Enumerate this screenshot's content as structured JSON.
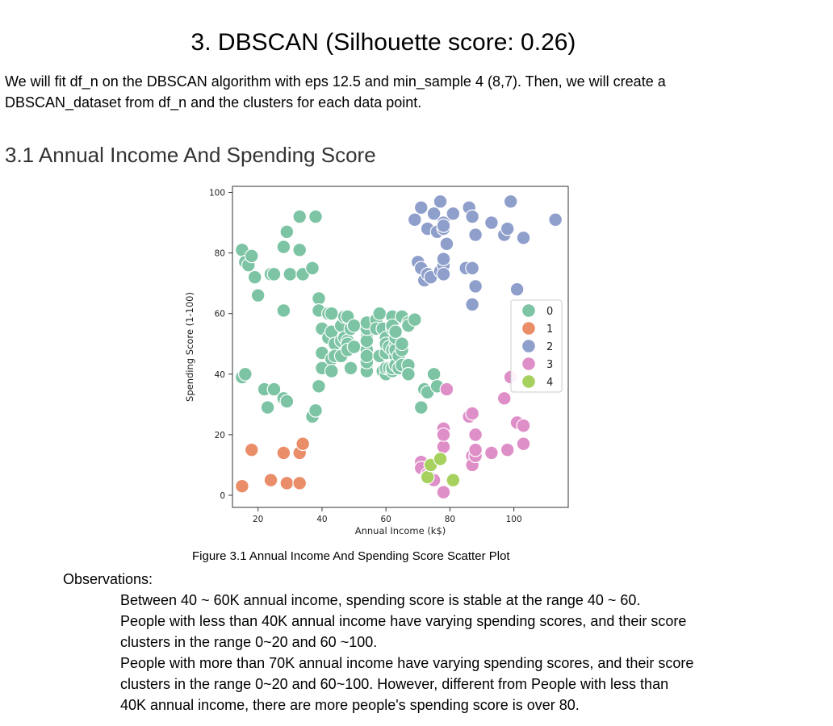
{
  "heading": "3. DBSCAN (Silhouette score: 0.26)",
  "intro": {
    "line1": "We will fit df_n on the DBSCAN algorithm with eps 12.5 and min_sample 4  (8,7). Then, we will create a",
    "line2": "DBSCAN_dataset from df_n and the clusters for each data point."
  },
  "section_title": "3.1 Annual Income And Spending Score",
  "chart_data": {
    "type": "scatter",
    "xlabel": "Annual Income (k$)",
    "ylabel": "Spending Score (1-100)",
    "xlim": [
      12,
      117
    ],
    "ylim": [
      -4,
      102
    ],
    "xticks": [
      20,
      40,
      60,
      80,
      100
    ],
    "yticks": [
      0,
      20,
      40,
      60,
      80,
      100
    ],
    "legend_position": "right",
    "grid": false,
    "series": [
      {
        "name": "0",
        "color": "#7cc4a4",
        "points": [
          [
            15,
            39
          ],
          [
            16,
            40
          ],
          [
            15,
            81
          ],
          [
            16,
            77
          ],
          [
            17,
            76
          ],
          [
            18,
            79
          ],
          [
            19,
            72
          ],
          [
            20,
            66
          ],
          [
            22,
            35
          ],
          [
            23,
            29
          ],
          [
            24,
            73
          ],
          [
            25,
            73
          ],
          [
            25,
            35
          ],
          [
            28,
            61
          ],
          [
            28,
            82
          ],
          [
            28,
            32
          ],
          [
            29,
            31
          ],
          [
            29,
            87
          ],
          [
            30,
            73
          ],
          [
            33,
            92
          ],
          [
            33,
            81
          ],
          [
            34,
            73
          ],
          [
            37,
            26
          ],
          [
            37,
            75
          ],
          [
            38,
            92
          ],
          [
            38,
            28
          ],
          [
            39,
            65
          ],
          [
            39,
            61
          ],
          [
            39,
            36
          ],
          [
            40,
            55
          ],
          [
            40,
            47
          ],
          [
            40,
            42
          ],
          [
            42,
            60
          ],
          [
            42,
            52
          ],
          [
            43,
            54
          ],
          [
            43,
            60
          ],
          [
            43,
            45
          ],
          [
            43,
            41
          ],
          [
            44,
            50
          ],
          [
            44,
            46
          ],
          [
            46,
            51
          ],
          [
            46,
            46
          ],
          [
            46,
            56
          ],
          [
            47,
            52
          ],
          [
            47,
            59
          ],
          [
            48,
            51
          ],
          [
            48,
            59
          ],
          [
            48,
            50
          ],
          [
            48,
            48
          ],
          [
            48,
            59
          ],
          [
            49,
            55
          ],
          [
            49,
            42
          ],
          [
            50,
            49
          ],
          [
            50,
            56
          ],
          [
            54,
            47
          ],
          [
            54,
            54
          ],
          [
            54,
            53
          ],
          [
            54,
            48
          ],
          [
            54,
            52
          ],
          [
            54,
            42
          ],
          [
            54,
            51
          ],
          [
            54,
            55
          ],
          [
            54,
            41
          ],
          [
            54,
            44
          ],
          [
            54,
            57
          ],
          [
            54,
            46
          ],
          [
            57,
            58
          ],
          [
            57,
            55
          ],
          [
            58,
            60
          ],
          [
            58,
            46
          ],
          [
            59,
            55
          ],
          [
            59,
            41
          ],
          [
            60,
            49
          ],
          [
            60,
            40
          ],
          [
            60,
            42
          ],
          [
            60,
            52
          ],
          [
            60,
            47
          ],
          [
            60,
            50
          ],
          [
            61,
            42
          ],
          [
            61,
            49
          ],
          [
            62,
            41
          ],
          [
            62,
            48
          ],
          [
            62,
            59
          ],
          [
            62,
            55
          ],
          [
            62,
            56
          ],
          [
            62,
            42
          ],
          [
            63,
            50
          ],
          [
            63,
            46
          ],
          [
            63,
            43
          ],
          [
            63,
            48
          ],
          [
            63,
            52
          ],
          [
            63,
            54
          ],
          [
            64,
            42
          ],
          [
            64,
            46
          ],
          [
            65,
            48
          ],
          [
            65,
            50
          ],
          [
            65,
            43
          ],
          [
            65,
            59
          ],
          [
            67,
            43
          ],
          [
            67,
            57
          ],
          [
            67,
            56
          ],
          [
            67,
            40
          ],
          [
            69,
            58
          ],
          [
            71,
            29
          ],
          [
            72,
            35
          ],
          [
            73,
            34
          ],
          [
            75,
            40
          ],
          [
            76,
            36
          ]
        ]
      },
      {
        "name": "1",
        "color": "#ea8e6a",
        "points": [
          [
            15,
            3
          ],
          [
            18,
            15
          ],
          [
            24,
            5
          ],
          [
            28,
            14
          ],
          [
            29,
            4
          ],
          [
            33,
            4
          ],
          [
            33,
            14
          ],
          [
            34,
            17
          ]
        ]
      },
      {
        "name": "2",
        "color": "#8f9fcb",
        "points": [
          [
            69,
            91
          ],
          [
            70,
            77
          ],
          [
            71,
            95
          ],
          [
            71,
            75
          ],
          [
            71,
            75
          ],
          [
            72,
            71
          ],
          [
            73,
            88
          ],
          [
            73,
            73
          ],
          [
            74,
            72
          ],
          [
            75,
            93
          ],
          [
            76,
            87
          ],
          [
            77,
            97
          ],
          [
            77,
            74
          ],
          [
            78,
            90
          ],
          [
            78,
            88
          ],
          [
            78,
            76
          ],
          [
            78,
            89
          ],
          [
            78,
            78
          ],
          [
            78,
            73
          ],
          [
            79,
            83
          ],
          [
            81,
            93
          ],
          [
            85,
            75
          ],
          [
            86,
            95
          ],
          [
            87,
            63
          ],
          [
            87,
            75
          ],
          [
            87,
            92
          ],
          [
            88,
            69
          ],
          [
            88,
            86
          ],
          [
            93,
            90
          ],
          [
            97,
            86
          ],
          [
            98,
            88
          ],
          [
            99,
            97
          ],
          [
            101,
            68
          ],
          [
            103,
            85
          ],
          [
            113,
            91
          ]
        ]
      },
      {
        "name": "3",
        "color": "#df8fc8",
        "points": [
          [
            71,
            11
          ],
          [
            71,
            9
          ],
          [
            73,
            7
          ],
          [
            74,
            10
          ],
          [
            75,
            5
          ],
          [
            78,
            1
          ],
          [
            78,
            16
          ],
          [
            78,
            22
          ],
          [
            78,
            20
          ],
          [
            79,
            35
          ],
          [
            86,
            26
          ],
          [
            87,
            27
          ],
          [
            87,
            13
          ],
          [
            87,
            10
          ],
          [
            88,
            13
          ],
          [
            88,
            15
          ],
          [
            88,
            20
          ],
          [
            93,
            14
          ],
          [
            97,
            32
          ],
          [
            98,
            15
          ],
          [
            99,
            39
          ],
          [
            101,
            24
          ],
          [
            103,
            23
          ],
          [
            103,
            17
          ]
        ]
      },
      {
        "name": "4",
        "color": "#a6d15e",
        "points": [
          [
            73,
            6
          ],
          [
            74,
            10
          ],
          [
            77,
            12
          ],
          [
            81,
            5
          ]
        ]
      }
    ]
  },
  "caption": "Figure 3.1 Annual Income And Spending Score Scatter Plot",
  "observations": {
    "title": "Observations:",
    "lines": [
      "Between 40 ~ 60K annual income, spending score is stable at the range 40 ~ 60.",
      "People with less than 40K annual income have varying spending scores, and their score",
      "clusters in the range 0~20 and 60 ~100.",
      "People with more than 70K annual income have varying spending scores, and their score",
      "clusters in the range 0~20 and 60~100. However, different from People with less than",
      "40K annual income, there are more people's spending score is over 80."
    ]
  }
}
